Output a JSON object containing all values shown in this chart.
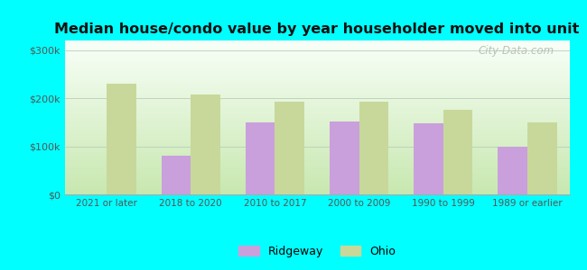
{
  "title": "Median house/condo value by year householder moved into unit",
  "categories": [
    "2021 or later",
    "2018 to 2020",
    "2010 to 2017",
    "2000 to 2009",
    "1990 to 1999",
    "1989 or earlier"
  ],
  "ridgeway_values": [
    0,
    80000,
    150000,
    152000,
    148000,
    100000
  ],
  "ohio_values": [
    230000,
    208000,
    193000,
    192000,
    175000,
    150000
  ],
  "ridgeway_color": "#c9a0dc",
  "ohio_color": "#c8d89a",
  "background_color": "#00ffff",
  "grad_bottom": "#c8e8b0",
  "grad_top": "#f8fff8",
  "yticks": [
    0,
    100000,
    200000,
    300000
  ],
  "ytick_labels": [
    "$0",
    "$100k",
    "$200k",
    "$300k"
  ],
  "ylim": [
    0,
    320000
  ],
  "watermark": "City-Data.com",
  "legend_labels": [
    "Ridgeway",
    "Ohio"
  ]
}
